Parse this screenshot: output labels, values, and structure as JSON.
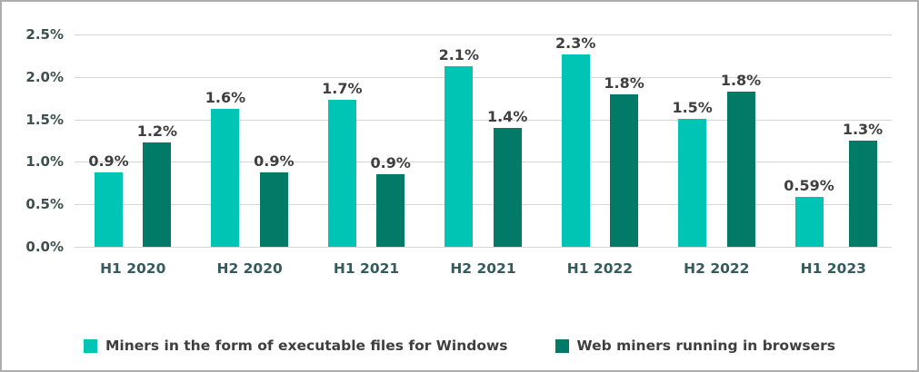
{
  "chart_data": {
    "type": "bar",
    "title": "",
    "xlabel": "",
    "ylabel": "",
    "categories": [
      "H1 2020",
      "H2 2020",
      "H1 2021",
      "H2 2021",
      "H1 2022",
      "H2 2022",
      "H1 2023"
    ],
    "series": [
      {
        "name": "Miners in the form of executable files for Windows",
        "color": "#00c4b4",
        "values": [
          0.88,
          1.62,
          1.73,
          2.13,
          2.35,
          1.51,
          0.59
        ],
        "labels": [
          "0.9%",
          "1.6%",
          "1.7%",
          "2.1%",
          "2.3%",
          "1.5%",
          "0.59%"
        ]
      },
      {
        "name": "Web miners running in browsers",
        "color": "#017a68",
        "values": [
          1.23,
          0.88,
          0.86,
          1.4,
          1.79,
          1.83,
          1.25
        ],
        "labels": [
          "1.2%",
          "0.9%",
          "0.9%",
          "1.4%",
          "1.8%",
          "1.8%",
          "1.3%"
        ]
      }
    ],
    "ylim": [
      0,
      2.5
    ],
    "yticks": [
      "0.0%",
      "0.5%",
      "1.0%",
      "1.5%",
      "2.0%",
      "2.5%"
    ],
    "grid": true,
    "legend_position": "bottom",
    "colors": {
      "gridline": "#d6d6d6",
      "data_label": "#3f3f3f",
      "axis_label": "#355b5e",
      "frame_border": "#adadad"
    }
  }
}
